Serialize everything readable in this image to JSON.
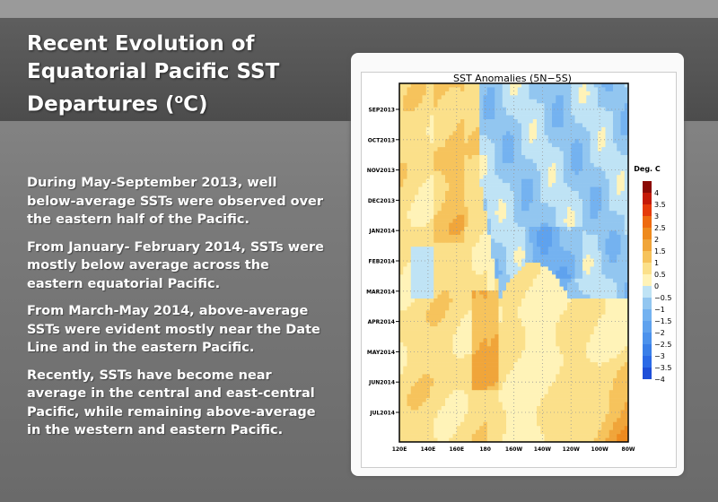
{
  "slide": {
    "title_main": "Recent Evolution of Equatorial Pacific SST Departures (",
    "title_sup": "o",
    "title_end": "C)",
    "paragraphs": [
      "During May-September 2013, well below-average SSTs were observed over the eastern half of the Pacific.",
      "From January- February 2014, SSTs were mostly below average across the eastern equatorial Pacific.",
      "From March-May 2014, above-average SSTs were evident mostly near the Date Line and in the eastern Pacific.",
      "Recently, SSTs have become near average in the central and east-central Pacific, while remaining above-average in the western and eastern Pacific."
    ]
  },
  "figure": {
    "title": "SST Anomalies (5N−5S)",
    "y_ticks": [
      "SEP2013",
      "OCT2013",
      "NOV2013",
      "DEC2013",
      "JAN2014",
      "FEB2014",
      "MAR2014",
      "APR2014",
      "MAY2014",
      "JUN2014",
      "JUL2014"
    ],
    "x_ticks": [
      "120E",
      "140E",
      "160E",
      "180",
      "160W",
      "140W",
      "120W",
      "100W",
      "80W"
    ],
    "colorbar_title": "Deg. C",
    "colorbar_labels": [
      "4",
      "3.5",
      "3",
      "2.5",
      "2",
      "1.5",
      "1",
      "0.5",
      "0",
      "−0.5",
      "−1",
      "−1.5",
      "−2",
      "−2.5",
      "−3",
      "−3.5",
      "−4"
    ],
    "colorbar_colors": [
      "#8b0a05",
      "#c41a08",
      "#e53a0a",
      "#ee6a10",
      "#ee8a1e",
      "#f0a53a",
      "#f6c35c",
      "#fbe08a",
      "#fff3b8",
      "#bfe3f5",
      "#92c6f0",
      "#74b2f0",
      "#5fa2ee",
      "#4c92ec",
      "#3a7fe8",
      "#2b6ae6",
      "#1e4fd8"
    ]
  }
}
